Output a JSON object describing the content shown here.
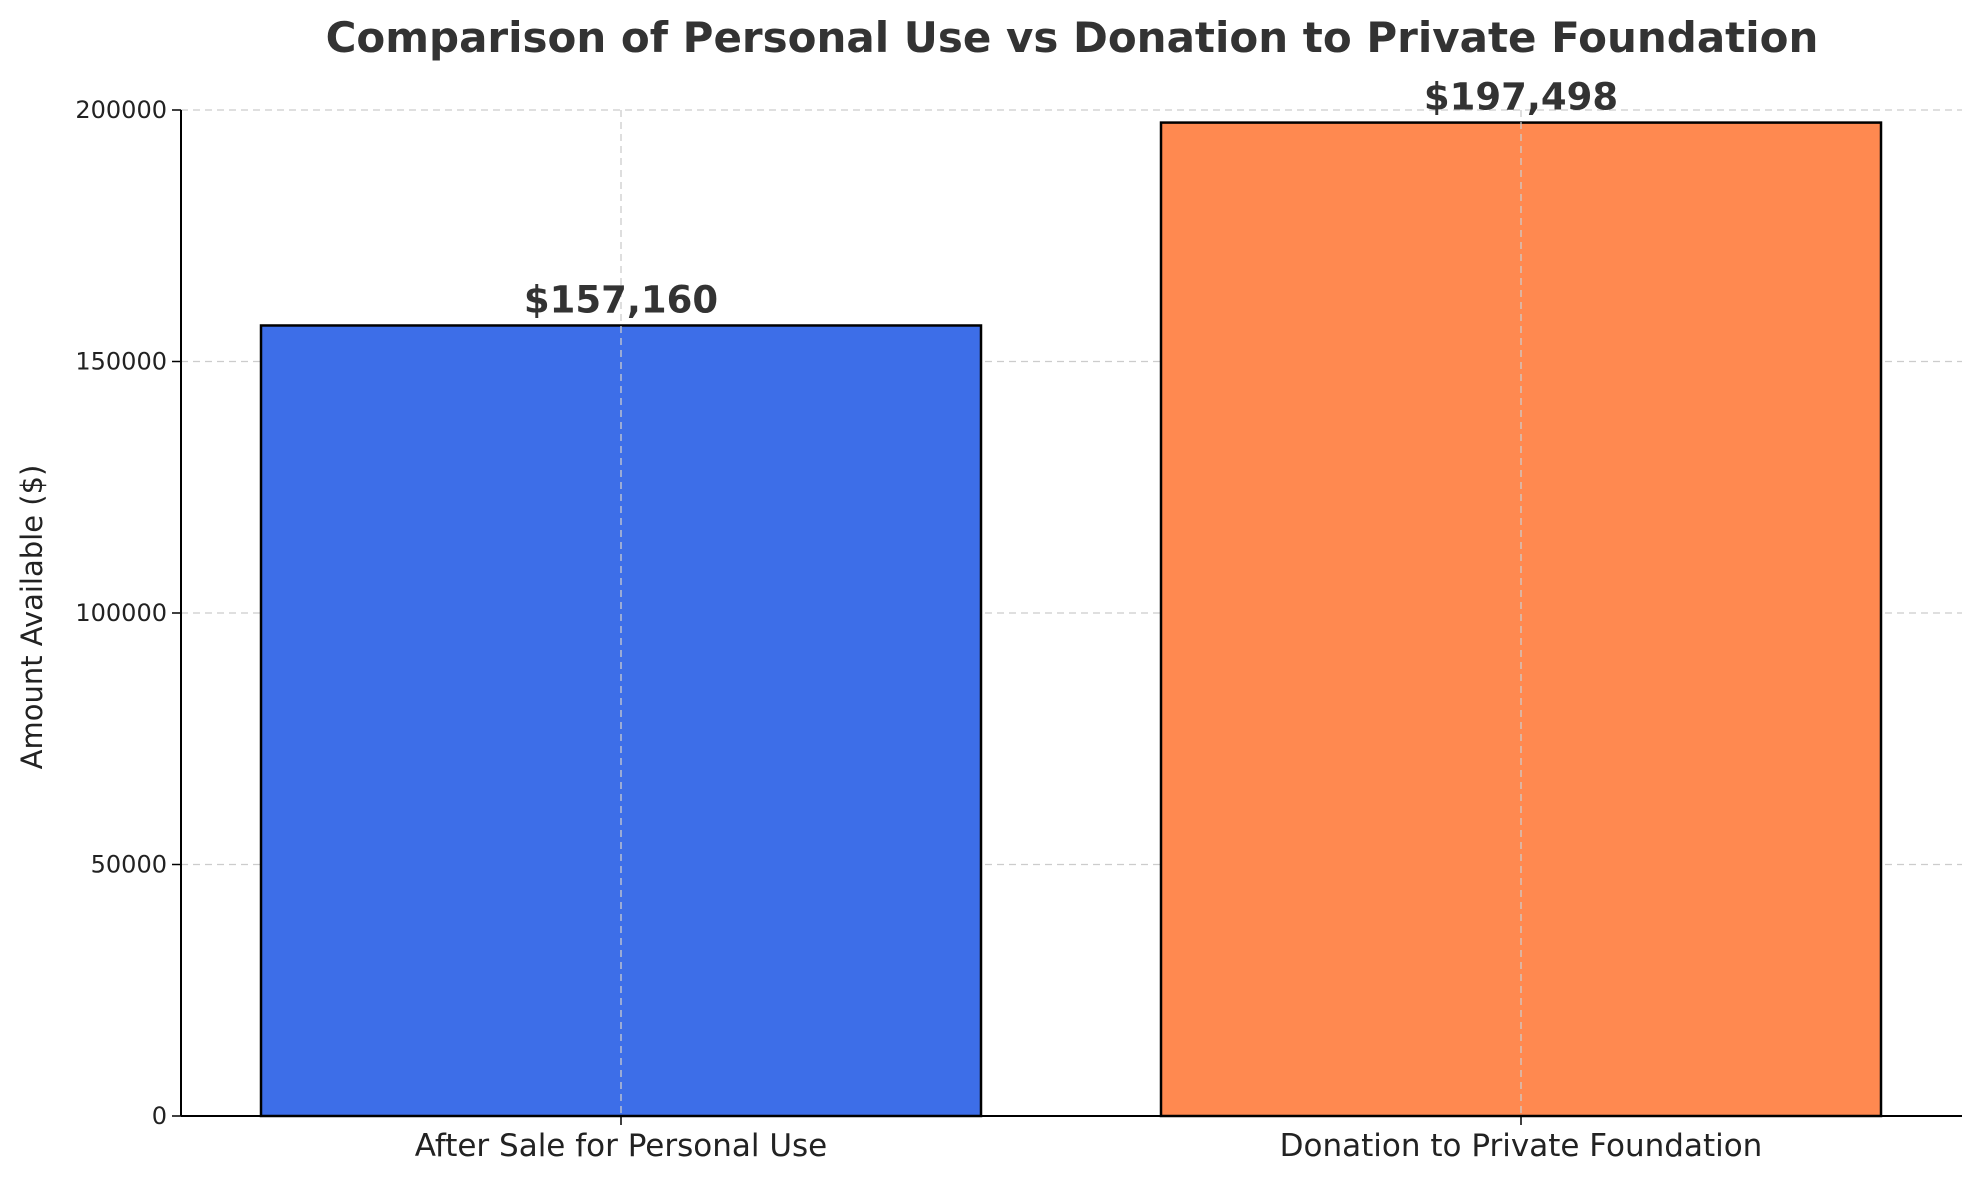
{
  "chart_data": {
    "type": "bar",
    "title": "Comparison of Personal Use vs Donation to Private Foundation",
    "xlabel": "",
    "ylabel": "Amount Available ($)",
    "categories": [
      "After Sale for Personal Use",
      "Donation to Private Foundation"
    ],
    "values": [
      157160,
      197498
    ],
    "value_labels": [
      "$157,160",
      "$197,498"
    ],
    "colors": [
      "#3d6ee8",
      "#ff8950"
    ],
    "ylim": [
      0,
      200000
    ],
    "yticks": [
      0,
      50000,
      100000,
      150000,
      200000
    ],
    "ytick_labels": [
      "0",
      "50000",
      "100000",
      "150000",
      "200000"
    ],
    "grid": true,
    "legend": "none"
  }
}
